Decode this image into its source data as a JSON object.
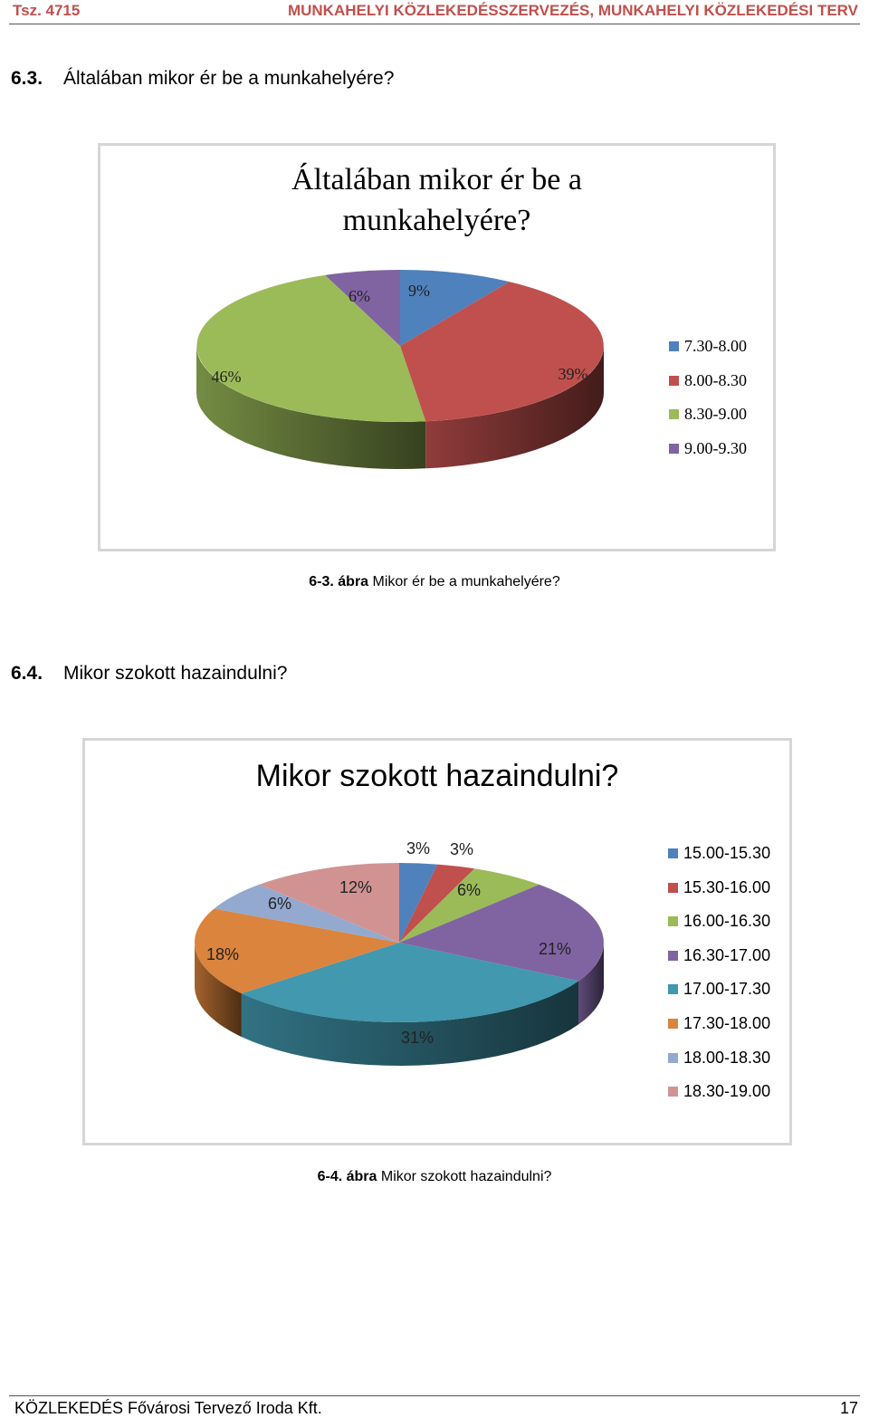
{
  "header": {
    "left": "Tsz. 4715",
    "right": "MUNKAHELYI KÖZLEKEDÉSSZERVEZÉS, MUNKAHELYI KÖZLEKEDÉSI TERV"
  },
  "section1": {
    "number": "6.3.",
    "title": "Általában mikor ér be a munkahelyére?"
  },
  "section2": {
    "number": "6.4.",
    "title": "Mikor szokott hazaindulni?"
  },
  "caption1": {
    "number": "6-3. ábra",
    "text": "Mikor ér be a munkahelyére?"
  },
  "caption2": {
    "number": "6-4. ábra",
    "text": "Mikor szokott hazaindulni?"
  },
  "footer": {
    "left": "KÖZLEKEDÉS Fővárosi Tervező Iroda Kft.",
    "page": "17"
  },
  "chart_data": [
    {
      "type": "pie",
      "title_lines": [
        "Általában mikor ér be a",
        "munkahelyére?"
      ],
      "legend_position": "right",
      "categories": [
        "7.30-8.00",
        "8.00-8.30",
        "8.30-9.00",
        "9.00-9.30"
      ],
      "values": [
        9,
        39,
        46,
        6
      ],
      "labels": [
        "9%",
        "39%",
        "46%",
        "6%"
      ],
      "colors": [
        "#4f81bd",
        "#c0504d",
        "#9bbb59",
        "#8064a2"
      ]
    },
    {
      "type": "pie",
      "title_lines": [
        "Mikor szokott hazaindulni?"
      ],
      "legend_position": "right",
      "categories": [
        "15.00-15.30",
        "15.30-16.00",
        "16.00-16.30",
        "16.30-17.00",
        "17.00-17.30",
        "17.30-18.00",
        "18.00-18.30",
        "18.30-19.00"
      ],
      "values": [
        3,
        3,
        6,
        21,
        31,
        18,
        6,
        12
      ],
      "labels": [
        "3%",
        "3%",
        "6%",
        "21%",
        "31%",
        "18%",
        "6%",
        "12%"
      ],
      "colors": [
        "#4f81bd",
        "#c0504d",
        "#9bbb59",
        "#8064a2",
        "#4198af",
        "#db843d",
        "#93a9cf",
        "#d19392"
      ]
    }
  ]
}
